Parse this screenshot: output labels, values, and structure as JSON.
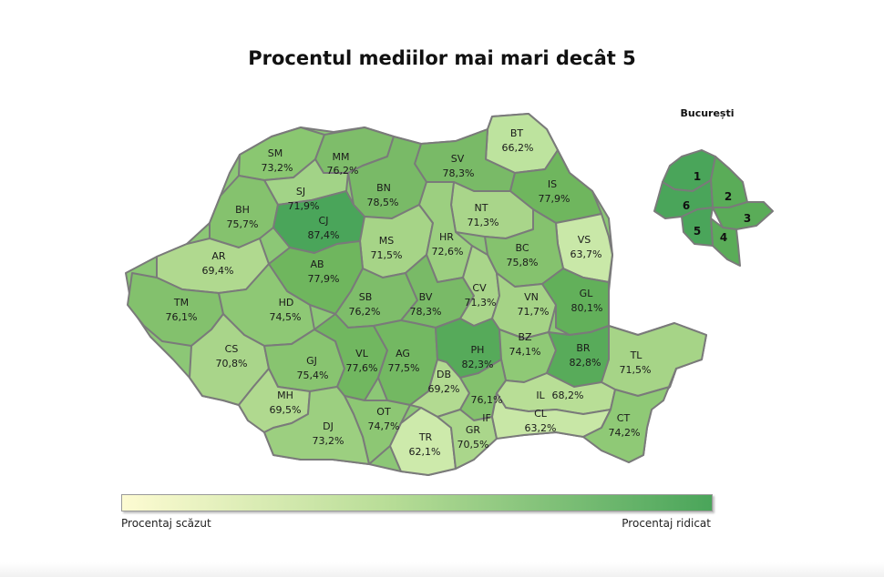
{
  "title": "Procentul mediilor mai mari decât 5",
  "legend": {
    "low_label": "Procentaj scăzut",
    "high_label": "Procentaj ridicat",
    "color_low": "#fdfbd2",
    "color_high": "#4aa55a"
  },
  "inset": {
    "title": "București",
    "sectors": [
      "1",
      "2",
      "3",
      "4",
      "5",
      "6"
    ]
  },
  "counties": [
    {
      "code": "SM",
      "value": "73,2%"
    },
    {
      "code": "MM",
      "value": "76,2%"
    },
    {
      "code": "BT",
      "value": "66,2%"
    },
    {
      "code": "SV",
      "value": "78,3%"
    },
    {
      "code": "SJ",
      "value": "71,9%"
    },
    {
      "code": "BN",
      "value": "78,5%"
    },
    {
      "code": "IS",
      "value": "77,9%"
    },
    {
      "code": "BH",
      "value": "75,7%"
    },
    {
      "code": "CJ",
      "value": "87,4%"
    },
    {
      "code": "NT",
      "value": "71,3%"
    },
    {
      "code": "MS",
      "value": "71,5%"
    },
    {
      "code": "HR",
      "value": "72,6%"
    },
    {
      "code": "VS",
      "value": "63,7%"
    },
    {
      "code": "AR",
      "value": "69,4%"
    },
    {
      "code": "BC",
      "value": "75,8%"
    },
    {
      "code": "AB",
      "value": "77,9%"
    },
    {
      "code": "TM",
      "value": "76,1%"
    },
    {
      "code": "HD",
      "value": "74,5%"
    },
    {
      "code": "SB",
      "value": "76,2%"
    },
    {
      "code": "BV",
      "value": "78,3%"
    },
    {
      "code": "CV",
      "value": "71,3%"
    },
    {
      "code": "VN",
      "value": "71,7%"
    },
    {
      "code": "GL",
      "value": "80,1%"
    },
    {
      "code": "CS",
      "value": "70,8%"
    },
    {
      "code": "GJ",
      "value": "75,4%"
    },
    {
      "code": "VL",
      "value": "77,6%"
    },
    {
      "code": "AG",
      "value": "77,5%"
    },
    {
      "code": "PH",
      "value": "82,3%"
    },
    {
      "code": "BZ",
      "value": "74,1%"
    },
    {
      "code": "BR",
      "value": "82,8%"
    },
    {
      "code": "TL",
      "value": "71,5%"
    },
    {
      "code": "DB",
      "value": "69,2%"
    },
    {
      "code": "MH",
      "value": "69,5%"
    },
    {
      "code": "IL",
      "value": "68,2%"
    },
    {
      "code": "IF",
      "value": "76,1%"
    },
    {
      "code": "OT",
      "value": "74,7%"
    },
    {
      "code": "DJ",
      "value": "73,2%"
    },
    {
      "code": "TR",
      "value": "62,1%"
    },
    {
      "code": "GR",
      "value": "70,5%"
    },
    {
      "code": "CL",
      "value": "63,2%"
    },
    {
      "code": "CT",
      "value": "74,2%"
    }
  ]
}
